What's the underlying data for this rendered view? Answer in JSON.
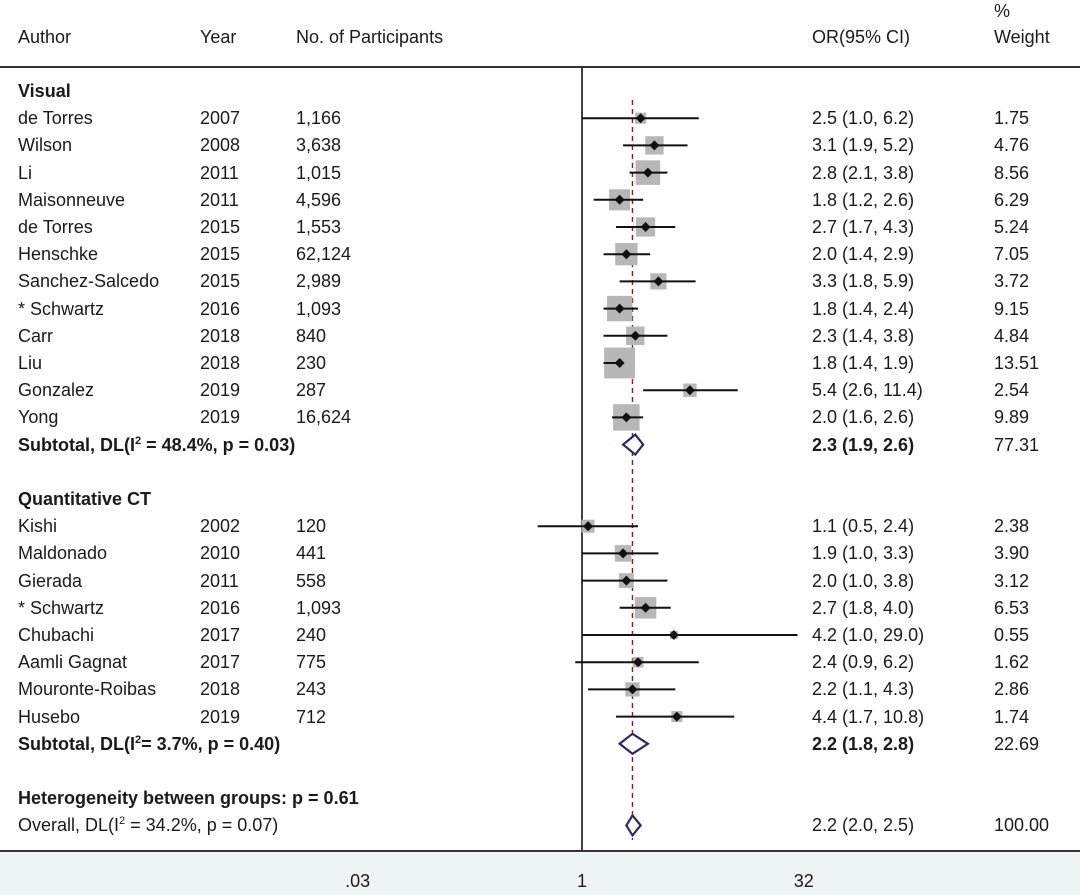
{
  "header": {
    "author": "Author",
    "year": "Year",
    "participants": "No. of Participants",
    "or": "OR(95% CI)",
    "weight_pct": "%",
    "weight": "Weight"
  },
  "colors": {
    "ci_line": "#111111",
    "box": "#b7b7b7",
    "point": "#111111",
    "summary_diamond": "#2d2a5e",
    "ref_line": "#8b1a1a",
    "axis_band": "#eef4f4"
  },
  "chart_data": {
    "type": "forest",
    "scale": "log",
    "null_value": 1,
    "overall_estimate": 2.2,
    "x_ticks": [
      {
        "value": 0.03,
        "label": ".03"
      },
      {
        "value": 1,
        "label": "1"
      },
      {
        "value": 32,
        "label": "32"
      }
    ],
    "rows": [
      {
        "kind": "group",
        "label": "Visual"
      },
      {
        "kind": "study",
        "author": "de Torres",
        "year": "2007",
        "n": "1,166",
        "or": 2.5,
        "lo": 1.0,
        "hi": 6.2,
        "or_text": "2.5 (1.0, 6.2)",
        "weight": 1.75,
        "weight_text": "1.75"
      },
      {
        "kind": "study",
        "author": "Wilson",
        "year": "2008",
        "n": "3,638",
        "or": 3.1,
        "lo": 1.9,
        "hi": 5.2,
        "or_text": "3.1 (1.9, 5.2)",
        "weight": 4.76,
        "weight_text": "4.76"
      },
      {
        "kind": "study",
        "author": "Li",
        "year": "2011",
        "n": "1,015",
        "or": 2.8,
        "lo": 2.1,
        "hi": 3.8,
        "or_text": "2.8 (2.1, 3.8)",
        "weight": 8.56,
        "weight_text": "8.56"
      },
      {
        "kind": "study",
        "author": "Maisonneuve",
        "year": "2011",
        "n": "4,596",
        "or": 1.8,
        "lo": 1.2,
        "hi": 2.6,
        "or_text": "1.8 (1.2, 2.6)",
        "weight": 6.29,
        "weight_text": "6.29"
      },
      {
        "kind": "study",
        "author": "de Torres",
        "year": "2015",
        "n": "1,553",
        "or": 2.7,
        "lo": 1.7,
        "hi": 4.3,
        "or_text": "2.7 (1.7, 4.3)",
        "weight": 5.24,
        "weight_text": "5.24"
      },
      {
        "kind": "study",
        "author": "Henschke",
        "year": "2015",
        "n": "62,124",
        "or": 2.0,
        "lo": 1.4,
        "hi": 2.9,
        "or_text": "2.0 (1.4, 2.9)",
        "weight": 7.05,
        "weight_text": "7.05"
      },
      {
        "kind": "study",
        "author": "Sanchez-Salcedo",
        "year": "2015",
        "n": "2,989",
        "or": 3.3,
        "lo": 1.8,
        "hi": 5.9,
        "or_text": "3.3 (1.8, 5.9)",
        "weight": 3.72,
        "weight_text": "3.72"
      },
      {
        "kind": "study",
        "author": "* Schwartz",
        "year": "2016",
        "n": "1,093",
        "or": 1.8,
        "lo": 1.4,
        "hi": 2.4,
        "or_text": "1.8 (1.4, 2.4)",
        "weight": 9.15,
        "weight_text": "9.15"
      },
      {
        "kind": "study",
        "author": "Carr",
        "year": "2018",
        "n": "840",
        "or": 2.3,
        "lo": 1.4,
        "hi": 3.8,
        "or_text": "2.3 (1.4, 3.8)",
        "weight": 4.84,
        "weight_text": "4.84"
      },
      {
        "kind": "study",
        "author": "Liu",
        "year": "2018",
        "n": "230",
        "or": 1.8,
        "lo": 1.4,
        "hi": 1.9,
        "or_text": "1.8 (1.4, 1.9)",
        "weight": 13.51,
        "weight_text": "13.51"
      },
      {
        "kind": "study",
        "author": "Gonzalez",
        "year": "2019",
        "n": "287",
        "or": 5.4,
        "lo": 2.6,
        "hi": 11.4,
        "or_text": "5.4 (2.6, 11.4)",
        "weight": 2.54,
        "weight_text": "2.54"
      },
      {
        "kind": "study",
        "author": "Yong",
        "year": "2019",
        "n": "16,624",
        "or": 2.0,
        "lo": 1.6,
        "hi": 2.6,
        "or_text": "2.0 (1.6, 2.6)",
        "weight": 9.89,
        "weight_text": "9.89"
      },
      {
        "kind": "subtotal",
        "label_pre": "Subtotal, DL(I",
        "label_sup": "2",
        "label_post": " = 48.4%, p = 0.03)",
        "or": 2.3,
        "lo": 1.9,
        "hi": 2.6,
        "or_text": "2.3 (1.9, 2.6)",
        "weight_text": "77.31",
        "bold": true
      },
      {
        "kind": "blank"
      },
      {
        "kind": "group",
        "label": "Quantitative CT"
      },
      {
        "kind": "study",
        "author": "Kishi",
        "year": "2002",
        "n": "120",
        "or": 1.1,
        "lo": 0.5,
        "hi": 2.4,
        "or_text": "1.1 (0.5, 2.4)",
        "weight": 2.38,
        "weight_text": "2.38"
      },
      {
        "kind": "study",
        "author": "Maldonado",
        "year": "2010",
        "n": "441",
        "or": 1.9,
        "lo": 1.0,
        "hi": 3.3,
        "or_text": "1.9 (1.0, 3.3)",
        "weight": 3.9,
        "weight_text": "3.90"
      },
      {
        "kind": "study",
        "author": "Gierada",
        "year": "2011",
        "n": "558",
        "or": 2.0,
        "lo": 1.0,
        "hi": 3.8,
        "or_text": "2.0 (1.0, 3.8)",
        "weight": 3.12,
        "weight_text": "3.12"
      },
      {
        "kind": "study",
        "author": "* Schwartz",
        "year": "2016",
        "n": "1,093",
        "or": 2.7,
        "lo": 1.8,
        "hi": 4.0,
        "or_text": "2.7 (1.8, 4.0)",
        "weight": 6.53,
        "weight_text": "6.53"
      },
      {
        "kind": "study",
        "author": "Chubachi",
        "year": "2017",
        "n": "240",
        "or": 4.2,
        "lo": 1.0,
        "hi": 29.0,
        "or_text": "4.2 (1.0, 29.0)",
        "weight": 0.55,
        "weight_text": "0.55"
      },
      {
        "kind": "study",
        "author": "Aamli Gagnat",
        "year": "2017",
        "n": "775",
        "or": 2.4,
        "lo": 0.9,
        "hi": 6.2,
        "or_text": "2.4 (0.9, 6.2)",
        "weight": 1.62,
        "weight_text": "1.62"
      },
      {
        "kind": "study",
        "author": "Mouronte-Roibas",
        "year": "2018",
        "n": "243",
        "or": 2.2,
        "lo": 1.1,
        "hi": 4.3,
        "or_text": "2.2 (1.1, 4.3)",
        "weight": 2.86,
        "weight_text": "2.86"
      },
      {
        "kind": "study",
        "author": "Husebo",
        "year": "2019",
        "n": "712",
        "or": 4.4,
        "lo": 1.7,
        "hi": 10.8,
        "or_text": "4.4 (1.7, 10.8)",
        "weight": 1.74,
        "weight_text": "1.74"
      },
      {
        "kind": "subtotal",
        "label_pre": "Subtotal, DL(I",
        "label_sup": "2",
        "label_post": "= 3.7%, p = 0.40)",
        "or": 2.2,
        "lo": 1.8,
        "hi": 2.8,
        "or_text": "2.2 (1.8, 2.8)",
        "weight_text": "22.69",
        "bold": true
      },
      {
        "kind": "blank"
      },
      {
        "kind": "label",
        "label": "Heterogeneity between groups: p = 0.61",
        "bold": true
      },
      {
        "kind": "overall",
        "label_pre": "Overall, DL(I",
        "label_sup": "2",
        "label_post": " = 34.2%, p = 0.07)",
        "or": 2.2,
        "lo": 2.0,
        "hi": 2.5,
        "or_text": "2.2 (2.0, 2.5)",
        "weight_text": "100.00",
        "bold": false
      }
    ]
  }
}
